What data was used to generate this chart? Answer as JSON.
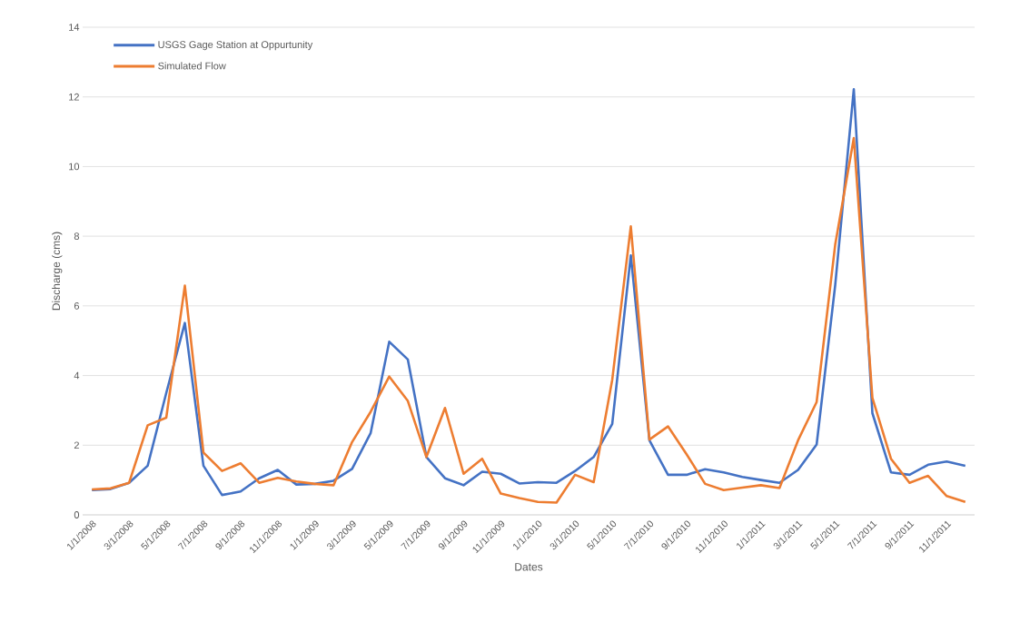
{
  "chart_data": {
    "type": "line",
    "xlabel": "Dates",
    "ylabel": "Discharge (cms)",
    "categories": [
      "1/1/2008",
      null,
      "3/1/2008",
      null,
      "5/1/2008",
      null,
      "7/1/2008",
      null,
      "9/1/2008",
      null,
      "11/1/2008",
      null,
      "1/1/2009",
      null,
      "3/1/2009",
      null,
      "5/1/2009",
      null,
      "7/1/2009",
      null,
      "9/1/2009",
      null,
      "11/1/2009",
      null,
      "1/1/2010",
      null,
      "3/1/2010",
      null,
      "5/1/2010",
      null,
      "7/1/2010",
      null,
      "9/1/2010",
      null,
      "11/1/2010",
      null,
      "1/1/2011",
      null,
      "3/1/2011",
      null,
      "5/1/2011",
      null,
      "7/1/2011",
      null,
      "9/1/2011",
      null,
      "11/1/2011",
      null
    ],
    "series": [
      {
        "name": "USGS Gage Station at Oppurtunity",
        "color": "#4472c4",
        "values": [
          0.71,
          0.74,
          0.92,
          1.41,
          3.5,
          5.51,
          1.41,
          0.57,
          0.67,
          1.05,
          1.29,
          0.87,
          0.89,
          0.98,
          1.32,
          2.35,
          4.97,
          4.46,
          1.66,
          1.05,
          0.85,
          1.24,
          1.18,
          0.9,
          0.94,
          0.92,
          1.26,
          1.66,
          2.61,
          7.45,
          2.14,
          1.15,
          1.15,
          1.31,
          1.22,
          1.09,
          1.0,
          0.92,
          1.29,
          2.02,
          6.6,
          12.22,
          2.92,
          1.22,
          1.15,
          1.44,
          1.53,
          1.41
        ]
      },
      {
        "name": "Simulated Flow",
        "color": "#ed7d31",
        "values": [
          0.73,
          0.76,
          0.92,
          2.57,
          2.79,
          6.58,
          1.79,
          1.26,
          1.48,
          0.92,
          1.06,
          0.96,
          0.89,
          0.85,
          2.09,
          2.96,
          3.97,
          3.27,
          1.66,
          3.07,
          1.18,
          1.61,
          0.61,
          0.48,
          0.37,
          0.35,
          1.15,
          0.94,
          3.88,
          8.28,
          2.16,
          2.54,
          1.74,
          0.89,
          0.71,
          0.78,
          0.85,
          0.77,
          2.14,
          3.24,
          7.76,
          10.82,
          3.36,
          1.61,
          0.92,
          1.12,
          0.54,
          0.37
        ]
      }
    ],
    "ylim": [
      0,
      14
    ],
    "yticks": [
      0,
      2,
      4,
      6,
      8,
      10,
      12,
      14
    ],
    "grid": "y",
    "legend": "top left"
  }
}
